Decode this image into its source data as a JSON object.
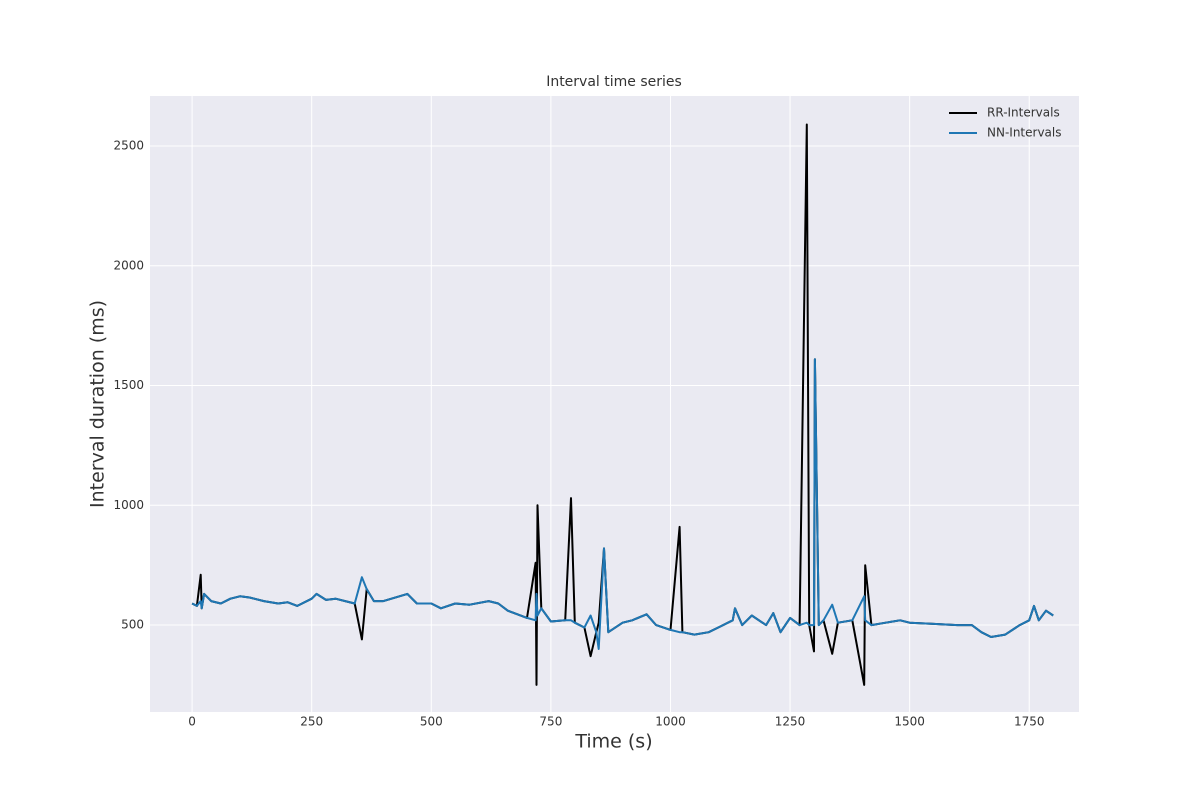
{
  "chart_data": {
    "type": "line",
    "title": "Interval time series",
    "x_label": "Time (s)",
    "y_label": "Interval duration (ms)",
    "x": [
      0,
      10,
      18,
      20,
      25,
      40,
      60,
      80,
      100,
      120,
      150,
      180,
      200,
      220,
      250,
      260,
      280,
      300,
      320,
      340,
      355,
      365,
      380,
      400,
      450,
      470,
      500,
      520,
      550,
      580,
      620,
      640,
      660,
      680,
      700,
      718,
      720,
      722,
      730,
      750,
      780,
      792,
      800,
      820,
      833,
      845,
      850,
      861,
      870,
      900,
      920,
      950,
      970,
      1000,
      1019,
      1025,
      1050,
      1080,
      1100,
      1130,
      1135,
      1150,
      1170,
      1200,
      1215,
      1230,
      1250,
      1270,
      1285,
      1290,
      1300,
      1302,
      1310,
      1320,
      1338,
      1350,
      1380,
      1405,
      1407,
      1420,
      1450,
      1480,
      1500,
      1550,
      1600,
      1630,
      1650,
      1670,
      1700,
      1730,
      1750,
      1760,
      1770,
      1785,
      1800
    ],
    "series": [
      {
        "name": "RR-Intervals",
        "color": "#000000",
        "values": [
          590,
          580,
          710,
          570,
          630,
          600,
          590,
          610,
          620,
          615,
          600,
          590,
          595,
          580,
          610,
          630,
          605,
          610,
          600,
          590,
          440,
          650,
          600,
          600,
          630,
          590,
          590,
          570,
          590,
          585,
          600,
          590,
          560,
          545,
          530,
          760,
          250,
          1000,
          570,
          515,
          520,
          1030,
          510,
          490,
          370,
          470,
          510,
          820,
          470,
          510,
          520,
          545,
          500,
          480,
          910,
          470,
          460,
          470,
          490,
          520,
          570,
          500,
          540,
          500,
          550,
          470,
          530,
          500,
          2590,
          500,
          390,
          1610,
          500,
          520,
          380,
          510,
          520,
          250,
          750,
          500,
          510,
          520,
          510,
          505,
          500,
          500,
          470,
          450,
          460,
          500,
          520,
          580,
          520,
          560,
          540
        ]
      },
      {
        "name": "NN-Intervals",
        "color": "#1f77b4",
        "values": [
          590,
          580,
          600,
          570,
          630,
          600,
          590,
          610,
          620,
          615,
          600,
          590,
          595,
          580,
          610,
          630,
          605,
          610,
          600,
          590,
          700,
          650,
          600,
          600,
          630,
          590,
          590,
          570,
          590,
          585,
          600,
          590,
          560,
          545,
          530,
          520,
          630,
          540,
          570,
          515,
          520,
          520,
          510,
          490,
          540,
          470,
          400,
          820,
          470,
          510,
          520,
          545,
          500,
          480,
          470,
          470,
          460,
          470,
          490,
          520,
          570,
          500,
          540,
          500,
          550,
          470,
          530,
          500,
          510,
          500,
          500,
          1610,
          500,
          520,
          585,
          510,
          520,
          620,
          520,
          500,
          510,
          520,
          510,
          505,
          500,
          500,
          470,
          450,
          460,
          500,
          520,
          580,
          520,
          560,
          540
        ]
      }
    ],
    "xlim": [
      -88,
      1854
    ],
    "ylim": [
      137,
      2709
    ],
    "xticks": [
      0,
      250,
      500,
      750,
      1000,
      1250,
      1500,
      1750
    ],
    "yticks": [
      500,
      1000,
      1500,
      2000,
      2500
    ],
    "grid": true,
    "legend": "upper right"
  }
}
